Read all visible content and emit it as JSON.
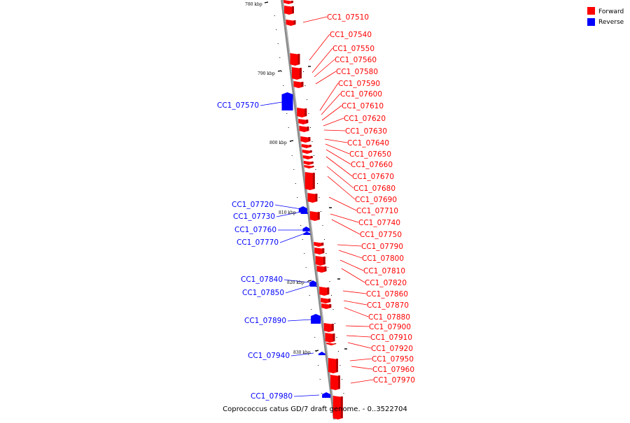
{
  "caption": "Coprococcus catus GD/7 draft genome. - 0..3522704",
  "legend": [
    {
      "label": "Forward",
      "color": "#ff0000"
    },
    {
      "label": "Reverse",
      "color": "#0000ff"
    }
  ],
  "colors": {
    "forward": "#ff0000",
    "reverse": "#0000ff",
    "backbone": "#8c8c8c"
  },
  "ticks": [
    "780 kbp",
    "790 kbp",
    "800 kbp",
    "810 kbp",
    "820 kbp",
    "830 kbp"
  ],
  "forward_labels": [
    "CC1_07510",
    "CC1_07540",
    "CC1_07550",
    "CC1_07560",
    "CC1_07580",
    "CC1_07590",
    "CC1_07600",
    "CC1_07610",
    "CC1_07620",
    "CC1_07630",
    "CC1_07640",
    "CC1_07650",
    "CC1_07660",
    "CC1_07670",
    "CC1_07680",
    "CC1_07690",
    "CC1_07710",
    "CC1_07740",
    "CC1_07750",
    "CC1_07790",
    "CC1_07800",
    "CC1_07810",
    "CC1_07820",
    "CC1_07860",
    "CC1_07870",
    "CC1_07880",
    "CC1_07900",
    "CC1_07910",
    "CC1_07920",
    "CC1_07950",
    "CC1_07960",
    "CC1_07970"
  ],
  "reverse_labels": [
    "CC1_07570",
    "CC1_07720",
    "CC1_07730",
    "CC1_07760",
    "CC1_07770",
    "CC1_07840",
    "CC1_07850",
    "CC1_07890",
    "CC1_07940",
    "CC1_07980"
  ]
}
